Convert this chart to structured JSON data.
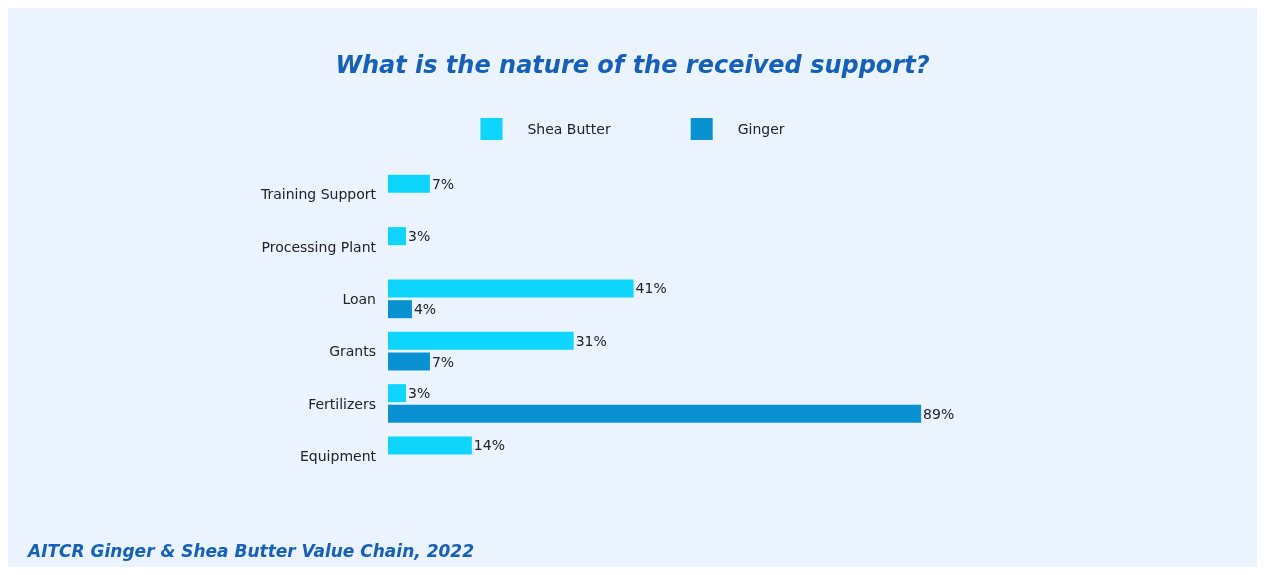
{
  "chart_data": {
    "type": "bar",
    "orientation": "horizontal",
    "title": "What is the nature of the received support?",
    "categories": [
      "Training Support",
      "Processing Plant",
      "Loan",
      "Grants",
      "Fertilizers",
      "Equipment"
    ],
    "series": [
      {
        "name": "Shea Butter",
        "color": "#0dd5fc",
        "values": [
          7,
          3,
          41,
          31,
          3,
          14
        ],
        "value_labels": [
          "7%",
          "3%",
          "41%",
          "31%",
          "3%",
          "14%"
        ]
      },
      {
        "name": "Ginger",
        "color": "#0a91d1",
        "values": [
          null,
          null,
          4,
          7,
          89,
          null
        ],
        "value_labels": [
          null,
          null,
          "4%",
          "7%",
          "89%",
          null
        ]
      }
    ],
    "legend": "top",
    "annotations": [
      "AITCR Ginger & Shea Butter Value Chain, 2022"
    ]
  }
}
